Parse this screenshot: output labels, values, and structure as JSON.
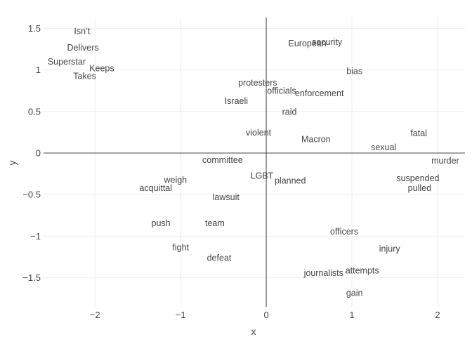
{
  "chart_data": {
    "type": "scatter",
    "mode": "text",
    "title": "",
    "xlabel": "x",
    "ylabel": "y",
    "xlim": [
      -2.6,
      2.32
    ],
    "ylim": [
      -1.85,
      1.63
    ],
    "xticks": [
      -2,
      -1,
      0,
      1,
      2
    ],
    "xtick_labels": [
      "−2",
      "−1",
      "0",
      "1",
      "2"
    ],
    "yticks": [
      -1.5,
      -1,
      -0.5,
      0,
      0.5,
      1,
      1.5
    ],
    "ytick_labels": [
      "−1.5",
      "−1",
      "−0.5",
      "0",
      "0.5",
      "1",
      "1.5"
    ],
    "grid": true,
    "zero_lines": true,
    "text_color": "#444444",
    "points": [
      {
        "label": "Isn’t",
        "x": -2.15,
        "y": 1.47
      },
      {
        "label": "Delivers",
        "x": -2.14,
        "y": 1.27
      },
      {
        "label": "Superstar",
        "x": -2.33,
        "y": 1.1
      },
      {
        "label": "Keeps",
        "x": -1.92,
        "y": 1.02
      },
      {
        "label": "Takes",
        "x": -2.12,
        "y": 0.93
      },
      {
        "label": "European",
        "x": 0.48,
        "y": 1.32
      },
      {
        "label": "security",
        "x": 0.71,
        "y": 1.34
      },
      {
        "label": "bias",
        "x": 1.03,
        "y": 0.99
      },
      {
        "label": "protesters",
        "x": -0.1,
        "y": 0.85
      },
      {
        "label": "officials",
        "x": 0.18,
        "y": 0.75
      },
      {
        "label": "enforcement",
        "x": 0.62,
        "y": 0.72
      },
      {
        "label": "Israeli",
        "x": -0.35,
        "y": 0.63
      },
      {
        "label": "raid",
        "x": 0.27,
        "y": 0.5
      },
      {
        "label": "violent",
        "x": -0.09,
        "y": 0.25
      },
      {
        "label": "Macron",
        "x": 0.58,
        "y": 0.17
      },
      {
        "label": "fatal",
        "x": 1.78,
        "y": 0.24
      },
      {
        "label": "sexual",
        "x": 1.37,
        "y": 0.07
      },
      {
        "label": "murder",
        "x": 2.09,
        "y": -0.09
      },
      {
        "label": "committee",
        "x": -0.51,
        "y": -0.08
      },
      {
        "label": "LGBT",
        "x": -0.05,
        "y": -0.27
      },
      {
        "label": "planned",
        "x": 0.28,
        "y": -0.33
      },
      {
        "label": "weigh",
        "x": -1.06,
        "y": -0.32
      },
      {
        "label": "acquittal",
        "x": -1.29,
        "y": -0.42
      },
      {
        "label": "suspended",
        "x": 1.77,
        "y": -0.3
      },
      {
        "label": "pulled",
        "x": 1.79,
        "y": -0.42
      },
      {
        "label": "lawsuit",
        "x": -0.47,
        "y": -0.53
      },
      {
        "label": "push",
        "x": -1.23,
        "y": -0.84
      },
      {
        "label": "team",
        "x": -0.6,
        "y": -0.84
      },
      {
        "label": "officers",
        "x": 0.91,
        "y": -0.94
      },
      {
        "label": "fight",
        "x": -1.0,
        "y": -1.13
      },
      {
        "label": "injury",
        "x": 1.44,
        "y": -1.15
      },
      {
        "label": "defeat",
        "x": -0.55,
        "y": -1.26
      },
      {
        "label": "attempts",
        "x": 1.12,
        "y": -1.41
      },
      {
        "label": "journalists",
        "x": 0.67,
        "y": -1.44
      },
      {
        "label": "gain",
        "x": 1.03,
        "y": -1.68
      }
    ]
  }
}
